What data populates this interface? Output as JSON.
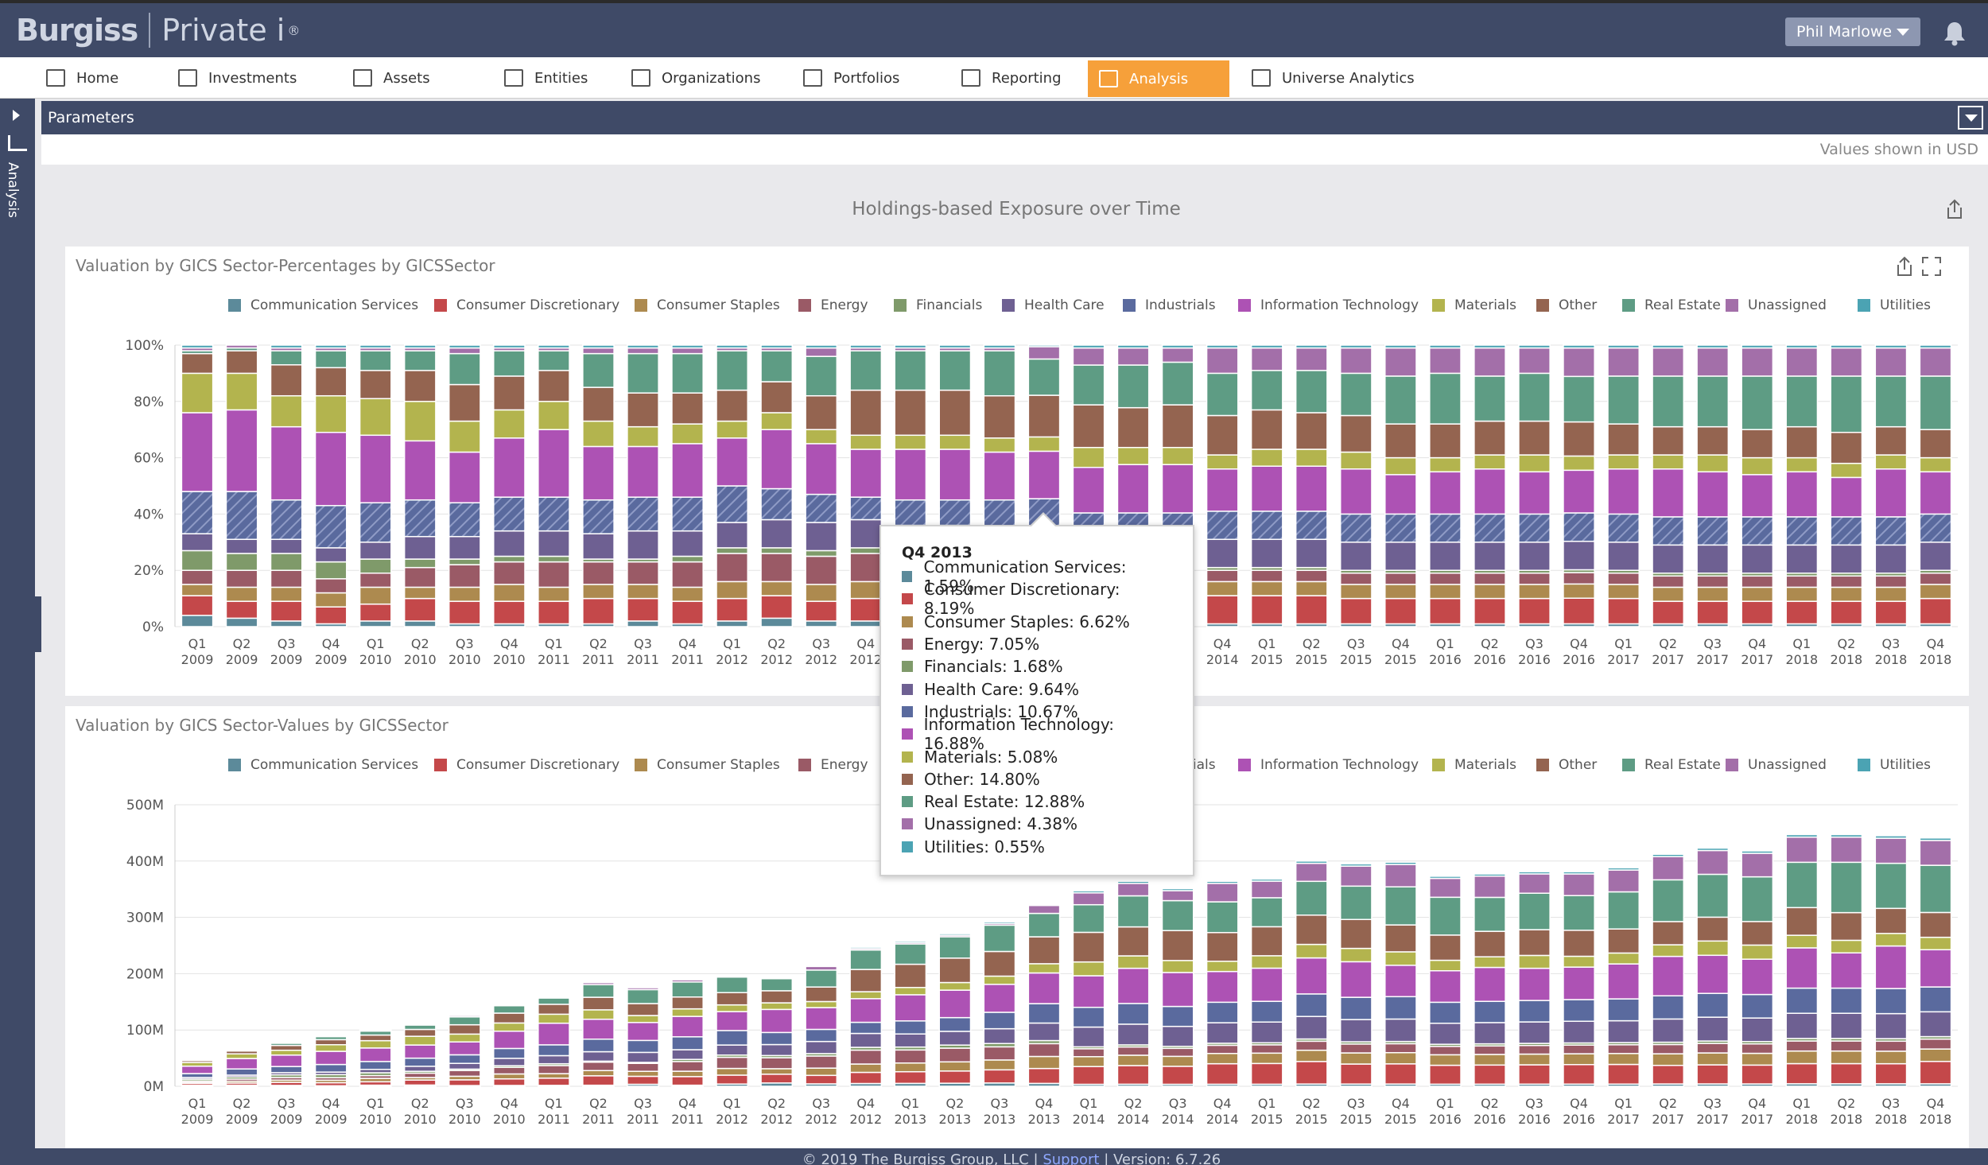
{
  "header": {
    "logo_brand": "Burgiss",
    "logo_product": "Private i",
    "logo_reg": "®",
    "user_name": "Phil Marlowe"
  },
  "nav": {
    "items": [
      {
        "label": "Home",
        "icon": "home-icon"
      },
      {
        "label": "Investments",
        "icon": "investments-icon"
      },
      {
        "label": "Assets",
        "icon": "assets-icon"
      },
      {
        "label": "Entities",
        "icon": "entities-icon"
      },
      {
        "label": "Organizations",
        "icon": "organizations-icon"
      },
      {
        "label": "Portfolios",
        "icon": "portfolios-icon"
      },
      {
        "label": "Reporting",
        "icon": "reporting-icon"
      },
      {
        "label": "Analysis",
        "icon": "analysis-icon",
        "active": true
      },
      {
        "label": "Universe Analytics",
        "icon": "universe-analytics-icon"
      }
    ]
  },
  "rail": {
    "label": "Analysis"
  },
  "params": {
    "label": "Parameters",
    "currency_note": "Values shown in USD"
  },
  "main": {
    "title": "Holdings-based Exposure over Time"
  },
  "colors": {
    "Communication Services": "#5c8a9a",
    "Consumer Discretionary": "#c4484a",
    "Consumer Staples": "#ad8a4f",
    "Energy": "#9a5a66",
    "Financials": "#7f9a6a",
    "Health Care": "#6e6092",
    "Industrials": "#5a6a9e",
    "Information Technology": "#ad52b4",
    "Materials": "#b3b44e",
    "Other": "#946450",
    "Real Estate": "#5e9c84",
    "Unassigned": "#a36fa9",
    "Utilities": "#4ba3b3"
  },
  "chart_data": [
    {
      "type": "bar",
      "stacked": true,
      "title": "Valuation by GICS Sector-Percentages by GICSSector",
      "ylim": [
        0,
        100
      ],
      "yticks": [
        "0%",
        "20%",
        "40%",
        "60%",
        "80%",
        "100%"
      ],
      "legend_position": "top",
      "categories": [
        "Q1 2009",
        "Q2 2009",
        "Q3 2009",
        "Q4 2009",
        "Q1 2010",
        "Q2 2010",
        "Q3 2010",
        "Q4 2010",
        "Q1 2011",
        "Q2 2011",
        "Q3 2011",
        "Q4 2011",
        "Q1 2012",
        "Q2 2012",
        "Q3 2012",
        "Q4 2012",
        "Q1 2013",
        "Q2 2013",
        "Q3 2013",
        "Q4 2013",
        "Q1 2014",
        "Q2 2014",
        "Q3 2014",
        "Q4 2014",
        "Q1 2015",
        "Q2 2015",
        "Q3 2015",
        "Q4 2015",
        "Q1 2016",
        "Q2 2016",
        "Q3 2016",
        "Q4 2016",
        "Q1 2017",
        "Q2 2017",
        "Q3 2017",
        "Q4 2017",
        "Q1 2018",
        "Q2 2018",
        "Q3 2018",
        "Q4 2018"
      ],
      "series_names": [
        "Communication Services",
        "Consumer Discretionary",
        "Consumer Staples",
        "Energy",
        "Financials",
        "Health Care",
        "Industrials",
        "Information Technology",
        "Materials",
        "Other",
        "Real Estate",
        "Unassigned",
        "Utilities"
      ],
      "series_values": [
        [
          4,
          3,
          2,
          1,
          2,
          2,
          1,
          1,
          1,
          1,
          2,
          1,
          2,
          3,
          2,
          2,
          2,
          2,
          2,
          1.59,
          1,
          1,
          1,
          1,
          1,
          1,
          1,
          1,
          1,
          1,
          1,
          1,
          1,
          1,
          1,
          1,
          1,
          1,
          1,
          1
        ],
        [
          7,
          6,
          7,
          6,
          6,
          8,
          8,
          8,
          8,
          9,
          8,
          8,
          8,
          8,
          7,
          8,
          8,
          8,
          8,
          8.19,
          9,
          9,
          9,
          10,
          10,
          10,
          9,
          9,
          9,
          9,
          9,
          9,
          9,
          8,
          8,
          8,
          8,
          8,
          8,
          9
        ],
        [
          4,
          5,
          5,
          5,
          6,
          4,
          5,
          6,
          5,
          5,
          5,
          5,
          6,
          5,
          6,
          6,
          6,
          6,
          6,
          6.62,
          5,
          5,
          5,
          5,
          5,
          5,
          5,
          5,
          5,
          5,
          5,
          5,
          5,
          5,
          5,
          5,
          5,
          5,
          5,
          5
        ],
        [
          5,
          6,
          6,
          5,
          5,
          7,
          8,
          8,
          9,
          8,
          8,
          9,
          10,
          10,
          10,
          10,
          9,
          9,
          8,
          7.05,
          4,
          4,
          4,
          4,
          4,
          4,
          4,
          4,
          4,
          4,
          4,
          4,
          4,
          4,
          4,
          4,
          4,
          4,
          4,
          4
        ],
        [
          7,
          6,
          6,
          6,
          5,
          3,
          2,
          2,
          2,
          1,
          1,
          2,
          2,
          2,
          2,
          2,
          2,
          2,
          2,
          1.68,
          1,
          1,
          1,
          1,
          1,
          1,
          1,
          1,
          1,
          1,
          1,
          1,
          1,
          1,
          1,
          1,
          1,
          1,
          1,
          1
        ],
        [
          6,
          5,
          5,
          5,
          6,
          8,
          8,
          9,
          9,
          9,
          10,
          9,
          9,
          10,
          10,
          10,
          9,
          9,
          9,
          9.64,
          10,
          10,
          10,
          10,
          10,
          10,
          10,
          10,
          10,
          10,
          10,
          10,
          10,
          10,
          10,
          10,
          10,
          10,
          10,
          10
        ],
        [
          15,
          17,
          14,
          15,
          14,
          13,
          12,
          12,
          12,
          12,
          12,
          12,
          13,
          11,
          10,
          8,
          9,
          9,
          10,
          10.67,
          10,
          10,
          10,
          10,
          10,
          10,
          10,
          10,
          10,
          10,
          10,
          10,
          10,
          10,
          10,
          10,
          10,
          10,
          10,
          10
        ],
        [
          28,
          29,
          26,
          26,
          24,
          21,
          18,
          21,
          24,
          19,
          18,
          19,
          17,
          21,
          18,
          17,
          18,
          18,
          17,
          16.88,
          16,
          17,
          17,
          15,
          16,
          16,
          16,
          14,
          15,
          16,
          15,
          15,
          16,
          17,
          16,
          15,
          16,
          14,
          17,
          15
        ],
        [
          14,
          13,
          11,
          13,
          13,
          14,
          11,
          10,
          10,
          9,
          7,
          7,
          6,
          6,
          5,
          5,
          5,
          5,
          5,
          5.08,
          7,
          6,
          6,
          5,
          6,
          6,
          6,
          6,
          5,
          5,
          6,
          5,
          5,
          5,
          6,
          6,
          5,
          5,
          5,
          5
        ],
        [
          7,
          8,
          11,
          10,
          10,
          11,
          13,
          12,
          11,
          12,
          12,
          11,
          11,
          11,
          12,
          16,
          16,
          16,
          15,
          14.8,
          15,
          14,
          15,
          14,
          14,
          13,
          13,
          12,
          12,
          12,
          12,
          12,
          11,
          10,
          10,
          10,
          11,
          11,
          10,
          10
        ],
        [
          1,
          1,
          5,
          6,
          7,
          7,
          11,
          9,
          7,
          12,
          14,
          14,
          14,
          11,
          14,
          14,
          14,
          14,
          16,
          12.88,
          14,
          15,
          15,
          15,
          14,
          15,
          15,
          17,
          18,
          16,
          17,
          16,
          17,
          18,
          18,
          19,
          18,
          20,
          18,
          19
        ],
        [
          1,
          1,
          1,
          1,
          1,
          1,
          2,
          1,
          1,
          2,
          2,
          2,
          1,
          1,
          3,
          1,
          1,
          1,
          1,
          4.38,
          6,
          6,
          5,
          9,
          8,
          8,
          9,
          10,
          9,
          10,
          9,
          10,
          10,
          10,
          10,
          10,
          10,
          10,
          10,
          10
        ],
        [
          1,
          0,
          1,
          1,
          1,
          1,
          1,
          1,
          1,
          1,
          1,
          1,
          1,
          1,
          1,
          1,
          1,
          1,
          1,
          0.55,
          1,
          1,
          1,
          1,
          1,
          1,
          1,
          1,
          1,
          1,
          1,
          1,
          1,
          1,
          1,
          1,
          1,
          1,
          1,
          1
        ]
      ]
    },
    {
      "type": "bar",
      "stacked": true,
      "title": "Valuation by GICS Sector-Values by GICSSector",
      "ylim": [
        0,
        500
      ],
      "yticks": [
        "0M",
        "100M",
        "200M",
        "300M",
        "400M",
        "500M"
      ],
      "legend_position": "top",
      "totals_millions": [
        47,
        64,
        78,
        90,
        100,
        111,
        127,
        146,
        160,
        186,
        177,
        191,
        198,
        195,
        215,
        247,
        258,
        271,
        292,
        323,
        347,
        364,
        351,
        364,
        368,
        400,
        395,
        398,
        373,
        377,
        381,
        381,
        388,
        412,
        423,
        418,
        447,
        447,
        445,
        441
      ]
    }
  ],
  "tooltip": {
    "title": "Q4 2013",
    "rows": [
      {
        "label": "Communication Services: 1.59%",
        "color": "#5c8a9a"
      },
      {
        "label": "Consumer Discretionary: 8.19%",
        "color": "#c4484a"
      },
      {
        "label": "Consumer Staples: 6.62%",
        "color": "#ad8a4f"
      },
      {
        "label": "Energy: 7.05%",
        "color": "#9a5a66"
      },
      {
        "label": "Financials: 1.68%",
        "color": "#7f9a6a"
      },
      {
        "label": "Health Care: 9.64%",
        "color": "#6e6092"
      },
      {
        "label": "Industrials: 10.67%",
        "color": "#5a6a9e"
      },
      {
        "label": "Information Technology: 16.88%",
        "color": "#ad52b4"
      },
      {
        "label": "Materials: 5.08%",
        "color": "#b3b44e"
      },
      {
        "label": "Other: 14.80%",
        "color": "#946450"
      },
      {
        "label": "Real Estate: 12.88%",
        "color": "#5e9c84"
      },
      {
        "label": "Unassigned: 4.38%",
        "color": "#a36fa9"
      },
      {
        "label": "Utilities: 0.55%",
        "color": "#4ba3b3"
      }
    ]
  },
  "footer": {
    "copyright": "© 2019 The Burgiss Group, LLC | ",
    "support": "Support",
    "version": " | Version: 6.7.26"
  }
}
